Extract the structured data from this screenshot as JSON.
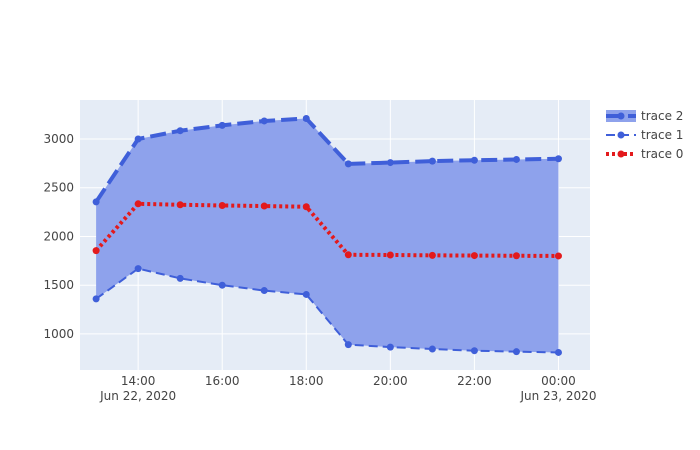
{
  "chart_data": {
    "type": "line",
    "title": "",
    "xlabel": "",
    "ylabel": "",
    "x_range": [
      "2020-06-22 12:37",
      "2020-06-23 00:45"
    ],
    "ylim": [
      630,
      3400
    ],
    "grid": true,
    "legend_position": "top-right",
    "x_ticks": [
      {
        "x": "2020-06-22 14:00",
        "label": "14:00",
        "sublabel": "Jun 22, 2020"
      },
      {
        "x": "2020-06-22 16:00",
        "label": "16:00",
        "sublabel": ""
      },
      {
        "x": "2020-06-22 18:00",
        "label": "18:00",
        "sublabel": ""
      },
      {
        "x": "2020-06-22 20:00",
        "label": "20:00",
        "sublabel": ""
      },
      {
        "x": "2020-06-22 22:00",
        "label": "22:00",
        "sublabel": ""
      },
      {
        "x": "2020-06-23 00:00",
        "label": "00:00",
        "sublabel": "Jun 23, 2020"
      }
    ],
    "y_ticks": [
      {
        "y": 1000,
        "label": "1000"
      },
      {
        "y": 1500,
        "label": "1500"
      },
      {
        "y": 2000,
        "label": "2000"
      },
      {
        "y": 2500,
        "label": "2500"
      },
      {
        "y": 3000,
        "label": "3000"
      }
    ],
    "x": [
      "2020-06-22 13:00",
      "2020-06-22 14:00",
      "2020-06-22 15:00",
      "2020-06-22 16:00",
      "2020-06-22 17:00",
      "2020-06-22 18:00",
      "2020-06-22 19:00",
      "2020-06-22 20:00",
      "2020-06-22 21:00",
      "2020-06-22 22:00",
      "2020-06-22 23:00",
      "2020-06-23 00:00"
    ],
    "series": [
      {
        "name": "trace 0",
        "color": "#e31a1c",
        "dash": "dot",
        "values": [
          1855,
          2335,
          2325,
          2318,
          2312,
          2305,
          1812,
          1810,
          1806,
          1804,
          1802,
          1800
        ]
      },
      {
        "name": "trace 1",
        "color": "#3f5fd9",
        "dash": "dash",
        "values": [
          1360,
          1670,
          1570,
          1500,
          1445,
          1405,
          890,
          865,
          845,
          828,
          818,
          810
        ]
      },
      {
        "name": "trace 2",
        "color": "#3f5fd9",
        "dash": "longdash",
        "fill": "tonexty",
        "fill_color": "#8ea2ec",
        "values": [
          2355,
          3000,
          3085,
          3140,
          3185,
          3210,
          2745,
          2758,
          2773,
          2782,
          2790,
          2797
        ]
      }
    ]
  }
}
